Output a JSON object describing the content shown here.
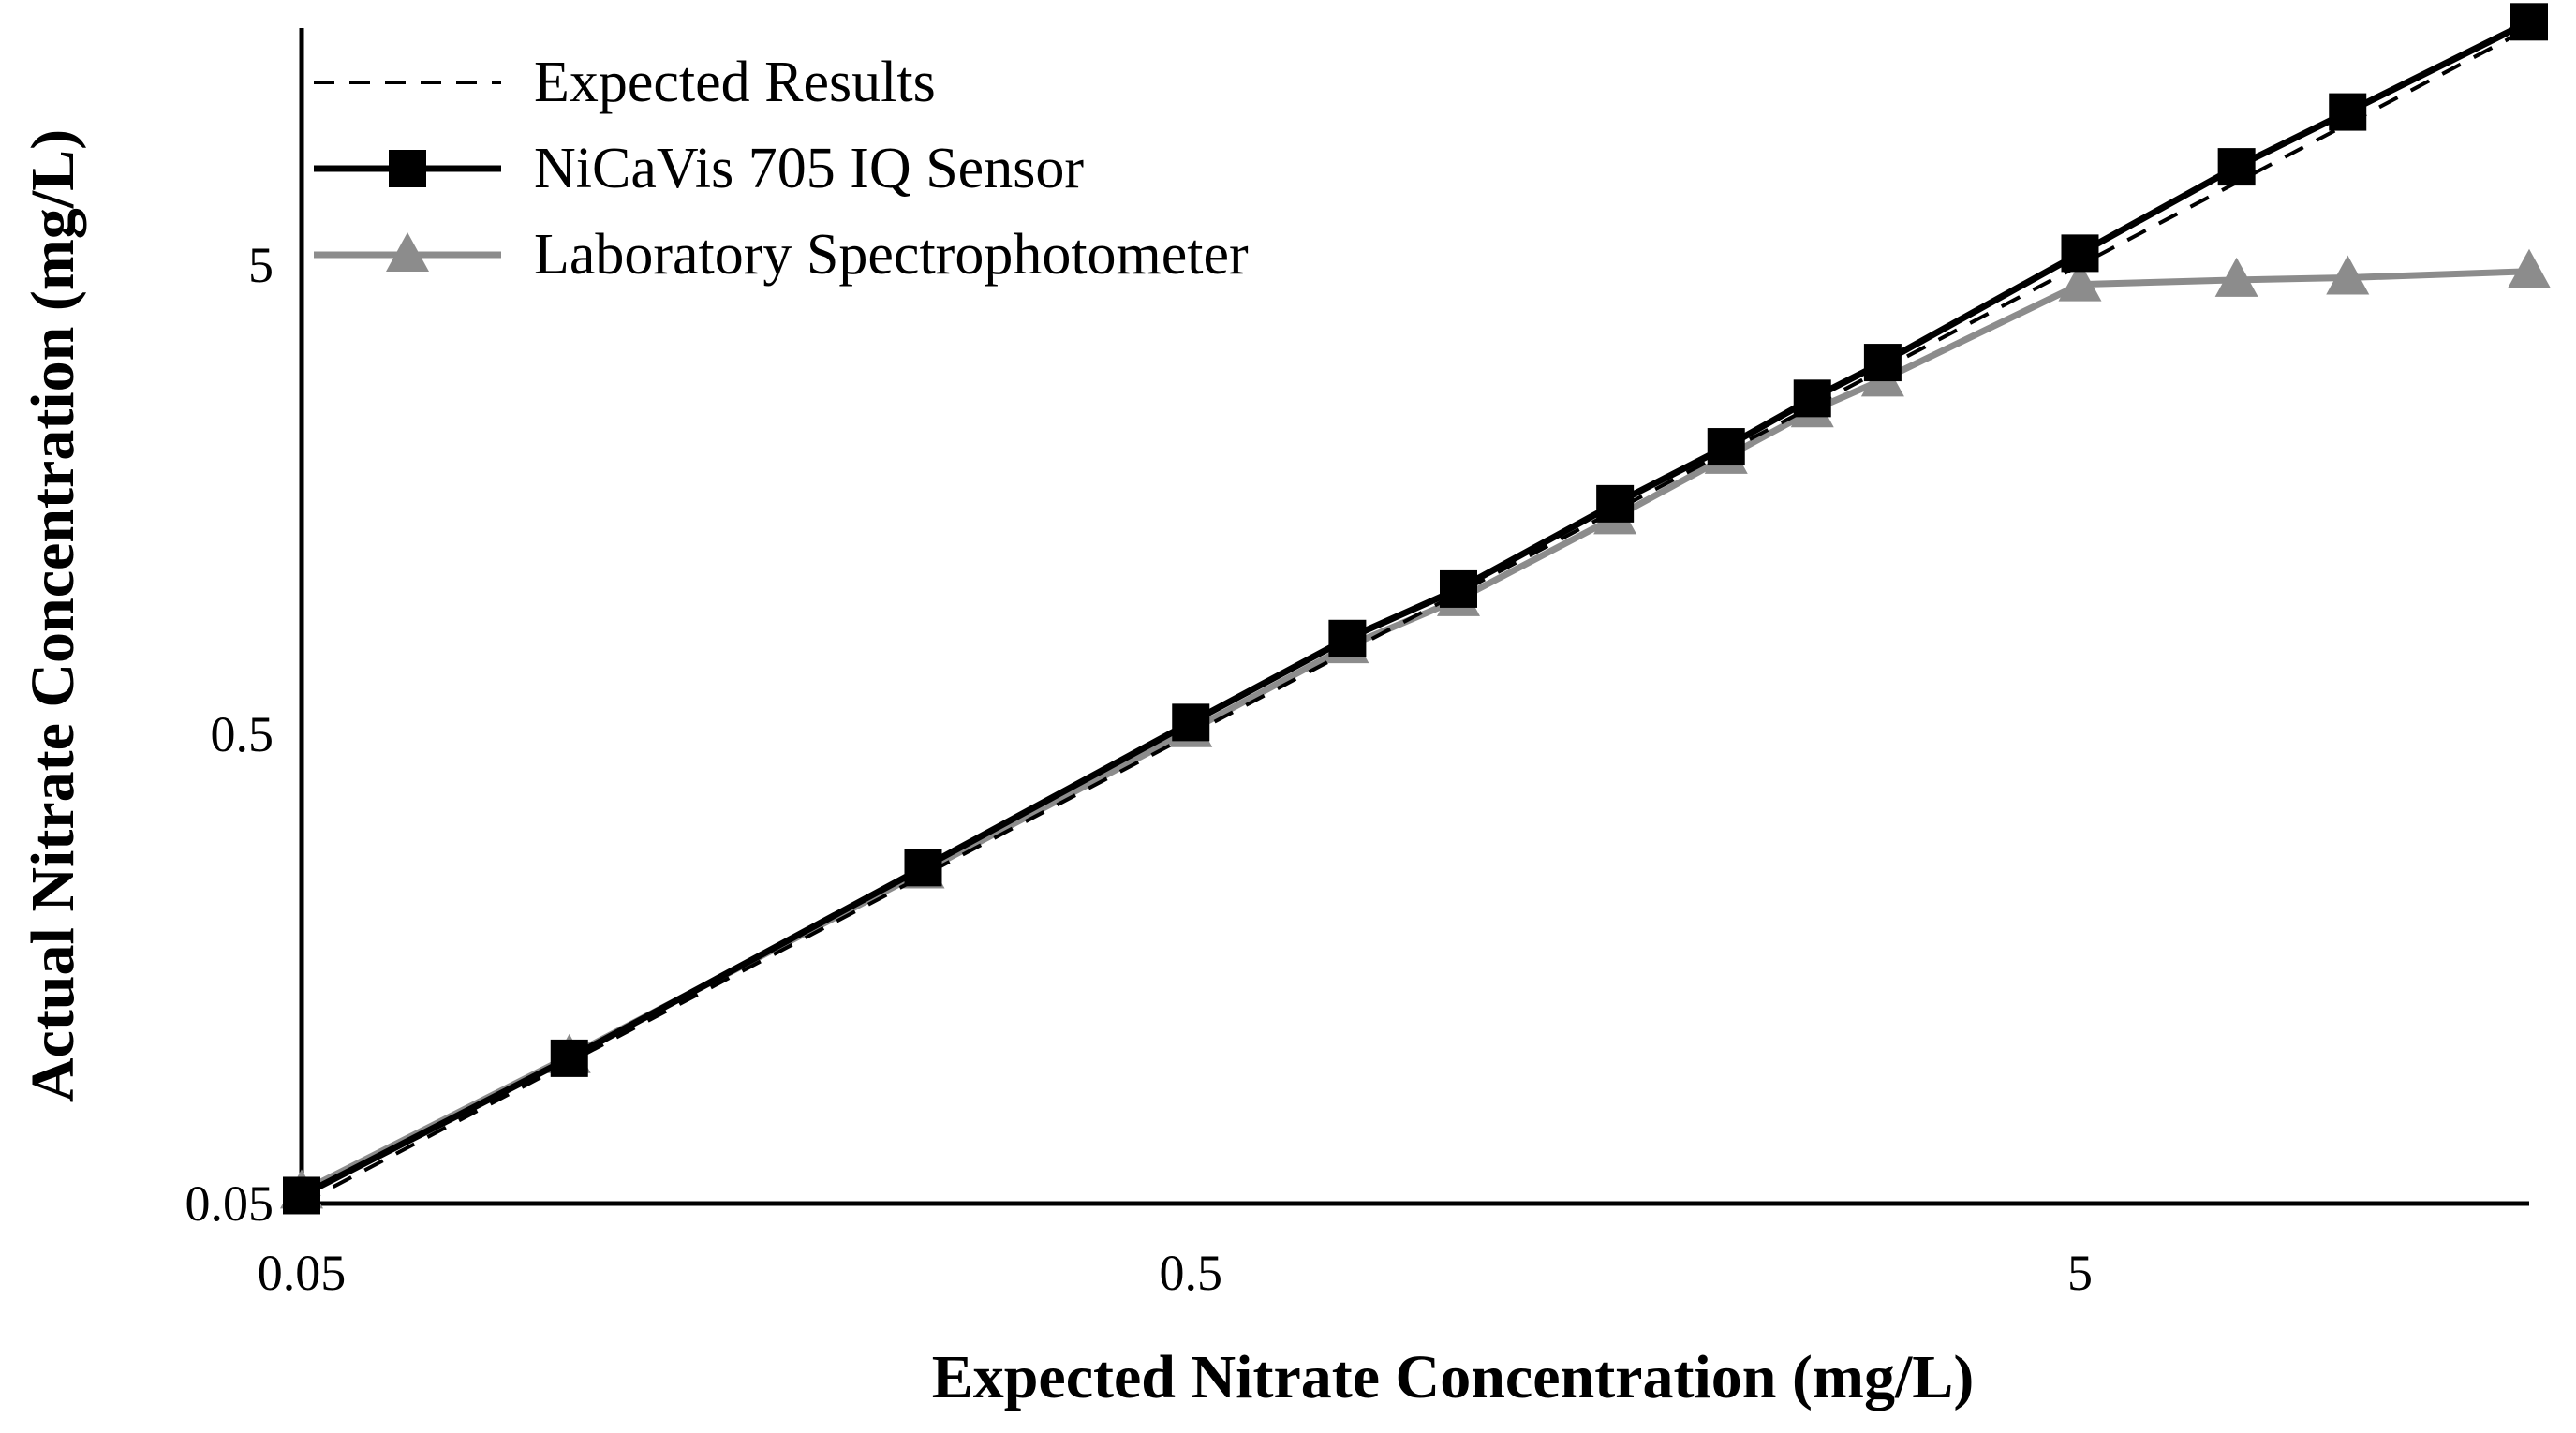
{
  "chart_data": {
    "type": "line",
    "title": "",
    "xlabel": "Expected Nitrate Concentration (mg/L)",
    "ylabel": "Actual Nitrate Concentration (mg/L)",
    "x_scale": "log",
    "y_scale": "log",
    "xlim": [
      0.05,
      16
    ],
    "ylim": [
      0.05,
      16
    ],
    "x_ticks": [
      0.05,
      0.5,
      5
    ],
    "x_tick_labels": [
      "0.05",
      "0.5",
      "5"
    ],
    "y_ticks": [
      0.05,
      0.5,
      5
    ],
    "y_tick_labels": [
      "0.05",
      "0.5",
      "5"
    ],
    "grid": false,
    "legend_position": "top-left",
    "series": [
      {
        "name": "Expected Results",
        "style": "dashed",
        "color": "#000000",
        "marker": "none",
        "x": [
          0.05,
          0.1,
          0.25,
          0.5,
          0.75,
          1,
          1.5,
          2,
          2.5,
          3,
          5,
          7.5,
          10,
          16
        ],
        "y": [
          0.05,
          0.1,
          0.25,
          0.5,
          0.75,
          1,
          1.5,
          2,
          2.5,
          3,
          5,
          7.5,
          10,
          16
        ]
      },
      {
        "name": "NiCaVis 705 IQ Sensor",
        "style": "solid",
        "color": "#000000",
        "marker": "square",
        "x": [
          0.05,
          0.1,
          0.25,
          0.5,
          0.75,
          1,
          1.5,
          2,
          2.5,
          3,
          5,
          7.5,
          10,
          16
        ],
        "y": [
          0.052,
          0.102,
          0.26,
          0.53,
          0.8,
          1.02,
          1.55,
          2.05,
          2.6,
          3.1,
          5.3,
          8.1,
          10.6,
          16.5
        ]
      },
      {
        "name": "Laboratory Spectrophotometer",
        "style": "solid",
        "color": "#8c8c8c",
        "marker": "triangle",
        "x": [
          0.05,
          0.1,
          0.25,
          0.5,
          0.75,
          1,
          1.5,
          2,
          2.5,
          3,
          5,
          7.5,
          10,
          16
        ],
        "y": [
          0.053,
          0.103,
          0.255,
          0.51,
          0.77,
          0.97,
          1.45,
          1.95,
          2.45,
          2.85,
          4.55,
          4.65,
          4.7,
          4.85
        ]
      }
    ]
  }
}
